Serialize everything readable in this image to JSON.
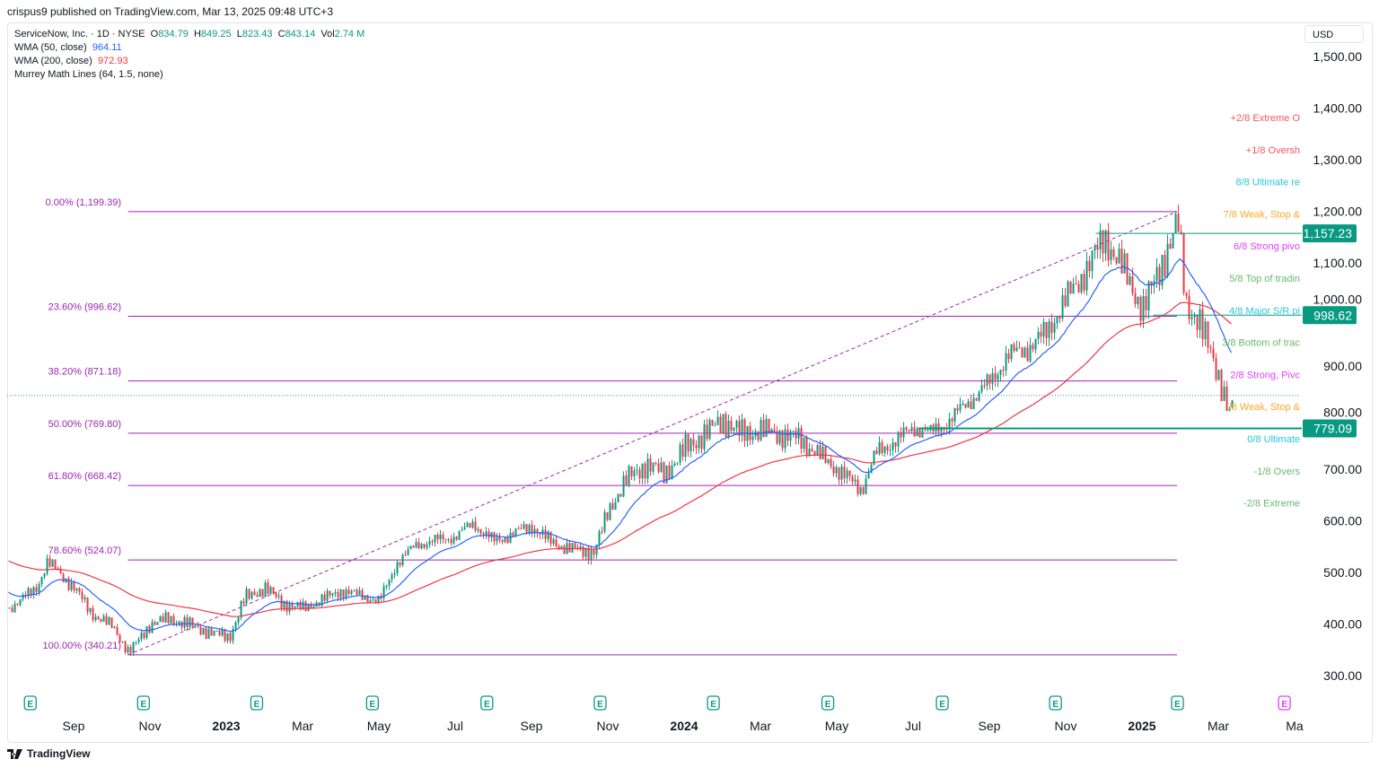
{
  "publish_line": "crispus9 published on TradingView.com, Mar 13, 2025 09:48 UTC+3",
  "legend": {
    "symbol": "ServiceNow, Inc. · 1D · NYSE",
    "o_label": "O",
    "o": "834.79",
    "h_label": "H",
    "h": "849.25",
    "l_label": "L",
    "l": "823.43",
    "c_label": "C",
    "c": "843.14",
    "vol_label": "Vol",
    "vol": "2.74 M",
    "wma50_label": "WMA (50, close)",
    "wma50": "964.11",
    "wma200_label": "WMA (200, close)",
    "wma200": "972.93",
    "murrey_label": "Murrey Math Lines (64, 1.5, none)"
  },
  "currency": "USD",
  "footer_brand": "TradingView",
  "colors": {
    "up": "#089981",
    "down": "#f23645",
    "wma50": "#2962ff",
    "wma200": "#f23645",
    "fib": "#9c27b0",
    "hline": "#089981"
  },
  "chart_data": {
    "type": "candlestick",
    "symbol": "NOW",
    "timeframe": "1D",
    "ylim": [
      300,
      1500
    ],
    "y_ticks": [
      "1,500.00",
      "1,400.00",
      "1,300.00",
      "1,200.00",
      "1,100.00",
      "1,000.00",
      "900.00",
      "800.00",
      "700.00",
      "600.00",
      "500.00",
      "400.00",
      "300.00"
    ],
    "x_ticks": [
      {
        "label": "Sep",
        "date": "2022-09-01",
        "bold": false
      },
      {
        "label": "Nov",
        "date": "2022-11-01",
        "bold": false
      },
      {
        "label": "2023",
        "date": "2023-01-01",
        "bold": true
      },
      {
        "label": "Mar",
        "date": "2023-03-01",
        "bold": false
      },
      {
        "label": "May",
        "date": "2023-05-01",
        "bold": false
      },
      {
        "label": "Jul",
        "date": "2023-07-01",
        "bold": false
      },
      {
        "label": "Sep",
        "date": "2023-09-01",
        "bold": false
      },
      {
        "label": "Nov",
        "date": "2023-11-01",
        "bold": false
      },
      {
        "label": "2024",
        "date": "2024-01-01",
        "bold": true
      },
      {
        "label": "Mar",
        "date": "2024-03-01",
        "bold": false
      },
      {
        "label": "May",
        "date": "2024-05-01",
        "bold": false
      },
      {
        "label": "Jul",
        "date": "2024-07-01",
        "bold": false
      },
      {
        "label": "Sep",
        "date": "2024-09-01",
        "bold": false
      },
      {
        "label": "Nov",
        "date": "2024-11-01",
        "bold": false
      },
      {
        "label": "2025",
        "date": "2025-01-01",
        "bold": true
      },
      {
        "label": "Mar",
        "date": "2025-03-01",
        "bold": false
      },
      {
        "label": "Ma",
        "date": "2025-05-01",
        "bold": false
      }
    ],
    "price_path": [
      [
        "2022-07-10",
        430
      ],
      [
        "2022-08-01",
        470
      ],
      [
        "2022-08-10",
        520
      ],
      [
        "2022-09-01",
        470
      ],
      [
        "2022-09-15",
        420
      ],
      [
        "2022-10-01",
        395
      ],
      [
        "2022-10-14",
        345
      ],
      [
        "2022-11-01",
        400
      ],
      [
        "2022-11-15",
        410
      ],
      [
        "2022-12-01",
        400
      ],
      [
        "2022-12-15",
        385
      ],
      [
        "2023-01-03",
        375
      ],
      [
        "2023-01-15",
        450
      ],
      [
        "2023-02-01",
        470
      ],
      [
        "2023-02-15",
        440
      ],
      [
        "2023-03-01",
        430
      ],
      [
        "2023-04-01",
        465
      ],
      [
        "2023-05-01",
        445
      ],
      [
        "2023-05-15",
        520
      ],
      [
        "2023-06-01",
        555
      ],
      [
        "2023-07-01",
        570
      ],
      [
        "2023-07-15",
        595
      ],
      [
        "2023-08-01",
        560
      ],
      [
        "2023-09-01",
        590
      ],
      [
        "2023-09-15",
        560
      ],
      [
        "2023-10-01",
        545
      ],
      [
        "2023-10-20",
        540
      ],
      [
        "2023-11-01",
        620
      ],
      [
        "2023-11-15",
        680
      ],
      [
        "2023-12-01",
        710
      ],
      [
        "2023-12-15",
        690
      ],
      [
        "2024-01-01",
        740
      ],
      [
        "2024-02-01",
        795
      ],
      [
        "2024-02-15",
        770
      ],
      [
        "2024-03-01",
        775
      ],
      [
        "2024-04-01",
        760
      ],
      [
        "2024-04-15",
        730
      ],
      [
        "2024-05-01",
        700
      ],
      [
        "2024-05-20",
        660
      ],
      [
        "2024-06-01",
        730
      ],
      [
        "2024-07-01",
        780
      ],
      [
        "2024-07-15",
        770
      ],
      [
        "2024-08-01",
        800
      ],
      [
        "2024-09-01",
        870
      ],
      [
        "2024-09-15",
        920
      ],
      [
        "2024-10-01",
        935
      ],
      [
        "2024-10-15",
        965
      ],
      [
        "2024-11-01",
        1030
      ],
      [
        "2024-11-15",
        1080
      ],
      [
        "2024-12-01",
        1150
      ],
      [
        "2024-12-15",
        1090
      ],
      [
        "2025-01-01",
        1010
      ],
      [
        "2025-01-15",
        1090
      ],
      [
        "2025-01-29",
        1180
      ],
      [
        "2025-02-05",
        1020
      ],
      [
        "2025-02-15",
        990
      ],
      [
        "2025-03-01",
        880
      ],
      [
        "2025-03-10",
        800
      ],
      [
        "2025-03-13",
        843.14
      ]
    ],
    "wma50_last": 964.11,
    "wma200_last": 972.93,
    "fibonacci": [
      {
        "label": "0.00% (1,199.39)",
        "price": 1199.39
      },
      {
        "label": "23.60% (996.62)",
        "price": 996.62
      },
      {
        "label": "38.20% (871.18)",
        "price": 871.18
      },
      {
        "label": "50.00% (769.80)",
        "price": 769.8
      },
      {
        "label": "61.80% (668.42)",
        "price": 668.42
      },
      {
        "label": "78.60% (524.07)",
        "price": 524.07
      },
      {
        "label": "100.00% (340.21)",
        "price": 340.21
      }
    ],
    "fib_range": {
      "start_date": "2022-10-14",
      "end_date": "2025-01-29"
    },
    "horizontal_lines": [
      {
        "price": 1157.23,
        "label": "1,157.23",
        "start_date": "2024-11-25"
      },
      {
        "price": 998.62,
        "label": "998.62",
        "start_date": "2025-01-10"
      },
      {
        "price": 779.09,
        "label": "779.09",
        "start_date": "2024-07-05"
      }
    ],
    "last_price": 843.14,
    "murrey_lines": [
      {
        "label": "+2/8 Extreme O",
        "color": "#f05a5a"
      },
      {
        "label": "+1/8 Oversh",
        "color": "#f05a5a"
      },
      {
        "label": "8/8 Ultimate re",
        "color": "#26c6da"
      },
      {
        "label": "7/8 Weak, Stop &",
        "color": "#ffa726"
      },
      {
        "label": "6/8 Strong pivo",
        "color": "#e040fb"
      },
      {
        "label": "5/8 Top of tradin",
        "color": "#66bb6a"
      },
      {
        "label": "4/8 Major S/R pi",
        "color": "#26c6da"
      },
      {
        "label": "3/8 Bottom of trac",
        "color": "#66bb6a"
      },
      {
        "label": "2/8 Strong, Pivc",
        "color": "#e040fb"
      },
      {
        "label": "/8 Weak, Stop &",
        "color": "#ffa726"
      },
      {
        "label": "0/8 Ultimate",
        "color": "#26c6da"
      },
      {
        "label": "-1/8 Overs",
        "color": "#66bb6a"
      },
      {
        "label": "-2/8 Extreme",
        "color": "#66bb6a"
      }
    ],
    "earnings_marker": "E",
    "earnings_dates": [
      "2022-07-27",
      "2022-10-26",
      "2023-01-25",
      "2023-04-26",
      "2023-07-26",
      "2023-10-25",
      "2024-01-24",
      "2024-04-24",
      "2024-07-24",
      "2024-10-23",
      "2025-01-29",
      "2025-04-23"
    ]
  }
}
